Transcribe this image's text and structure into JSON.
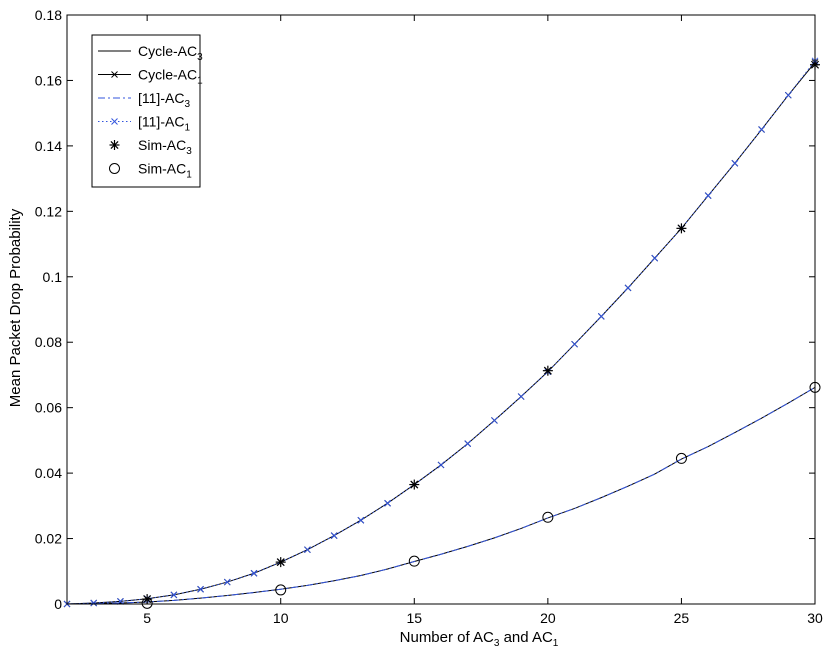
{
  "chart_data": {
    "type": "line",
    "title": "",
    "xlabel": {
      "pre": "Number of AC",
      "sub1": "3",
      "mid": " and AC",
      "sub2": "1"
    },
    "ylabel": "Mean Packet Drop Probability",
    "xlim": [
      2,
      30
    ],
    "ylim": [
      0,
      0.18
    ],
    "xticks": [
      5,
      10,
      15,
      20,
      25,
      30
    ],
    "xtick_labels": [
      "5",
      "10",
      "15",
      "20",
      "25",
      "30"
    ],
    "yticks": [
      0,
      0.02,
      0.04,
      0.06,
      0.08,
      0.1,
      0.12,
      0.14,
      0.16,
      0.18
    ],
    "ytick_labels": [
      "0",
      "0.02",
      "0.04",
      "0.06",
      "0.08",
      "0.1",
      "0.12",
      "0.14",
      "0.16",
      "0.18"
    ],
    "grid": false,
    "legend_position": "top-left",
    "series": [
      {
        "name": "Cycle-AC",
        "name_sub": "3",
        "color": "#000000",
        "line": "solid",
        "marker": "none",
        "x": [
          2,
          3,
          4,
          5,
          6,
          7,
          8,
          9,
          10,
          11,
          12,
          13,
          14,
          15,
          16,
          17,
          18,
          19,
          20,
          21,
          22,
          23,
          24,
          25,
          26,
          27,
          28,
          29,
          30
        ],
        "y": [
          0,
          0.0001,
          0.0003,
          0.0006,
          0.0011,
          0.0018,
          0.0026,
          0.0035,
          0.0045,
          0.0057,
          0.0071,
          0.0087,
          0.0107,
          0.013,
          0.0152,
          0.0176,
          0.0202,
          0.0231,
          0.0263,
          0.0292,
          0.0325,
          0.036,
          0.0397,
          0.0443,
          0.0481,
          0.0524,
          0.0568,
          0.0614,
          0.0662
        ]
      },
      {
        "name": "Cycle-AC",
        "name_sub": "1",
        "color": "#000000",
        "line": "solid",
        "marker": "x",
        "x": [
          2,
          3,
          4,
          5,
          6,
          7,
          8,
          9,
          10,
          11,
          12,
          13,
          14,
          15,
          16,
          17,
          18,
          19,
          20,
          21,
          22,
          23,
          24,
          25,
          26,
          27,
          28,
          29,
          30
        ],
        "y": [
          0,
          0.0003,
          0.0008,
          0.0016,
          0.0028,
          0.0045,
          0.0067,
          0.0094,
          0.0128,
          0.0166,
          0.0209,
          0.0256,
          0.0308,
          0.0365,
          0.0425,
          0.049,
          0.0561,
          0.0634,
          0.071,
          0.0794,
          0.0879,
          0.0966,
          0.1057,
          0.1148,
          0.1248,
          0.1347,
          0.145,
          0.1555,
          0.1655
        ]
      },
      {
        "name": "[11]-AC",
        "name_sub": "3",
        "color": "#3355dd",
        "line": "dashdot",
        "marker": "none",
        "x": [
          2,
          3,
          4,
          5,
          6,
          7,
          8,
          9,
          10,
          11,
          12,
          13,
          14,
          15,
          16,
          17,
          18,
          19,
          20,
          21,
          22,
          23,
          24,
          25,
          26,
          27,
          28,
          29,
          30
        ],
        "y": [
          0,
          0.0001,
          0.0003,
          0.0006,
          0.0011,
          0.0018,
          0.0026,
          0.0035,
          0.0045,
          0.0057,
          0.0071,
          0.0087,
          0.0107,
          0.013,
          0.0152,
          0.0176,
          0.0202,
          0.0231,
          0.0263,
          0.0292,
          0.0325,
          0.036,
          0.0397,
          0.0443,
          0.0481,
          0.0524,
          0.0568,
          0.0614,
          0.0662
        ]
      },
      {
        "name": "[11]-AC",
        "name_sub": "1",
        "color": "#3355dd",
        "line": "dotted",
        "marker": "x",
        "x": [
          2,
          3,
          4,
          5,
          6,
          7,
          8,
          9,
          10,
          11,
          12,
          13,
          14,
          15,
          16,
          17,
          18,
          19,
          20,
          21,
          22,
          23,
          24,
          25,
          26,
          27,
          28,
          29,
          30
        ],
        "y": [
          0,
          0.0003,
          0.0008,
          0.0016,
          0.0028,
          0.0045,
          0.0067,
          0.0094,
          0.0128,
          0.0166,
          0.0209,
          0.0256,
          0.0308,
          0.0365,
          0.0425,
          0.049,
          0.0561,
          0.0634,
          0.071,
          0.0794,
          0.0879,
          0.0966,
          0.1057,
          0.1148,
          0.1248,
          0.1347,
          0.145,
          0.1555,
          0.166
        ]
      },
      {
        "name": "Sim-AC",
        "name_sub": "3",
        "color": "#000000",
        "line": "none",
        "marker": "asterisk",
        "x": [
          5,
          10,
          15,
          20,
          25,
          30
        ],
        "y": [
          0.0015,
          0.0128,
          0.0365,
          0.0713,
          0.1148,
          0.1648
        ]
      },
      {
        "name": "Sim-AC",
        "name_sub": "1",
        "color": "#000000",
        "line": "none",
        "marker": "circle",
        "x": [
          5,
          10,
          15,
          20,
          25,
          30
        ],
        "y": [
          0.0002,
          0.0043,
          0.0131,
          0.0265,
          0.0445,
          0.0662
        ]
      }
    ]
  }
}
